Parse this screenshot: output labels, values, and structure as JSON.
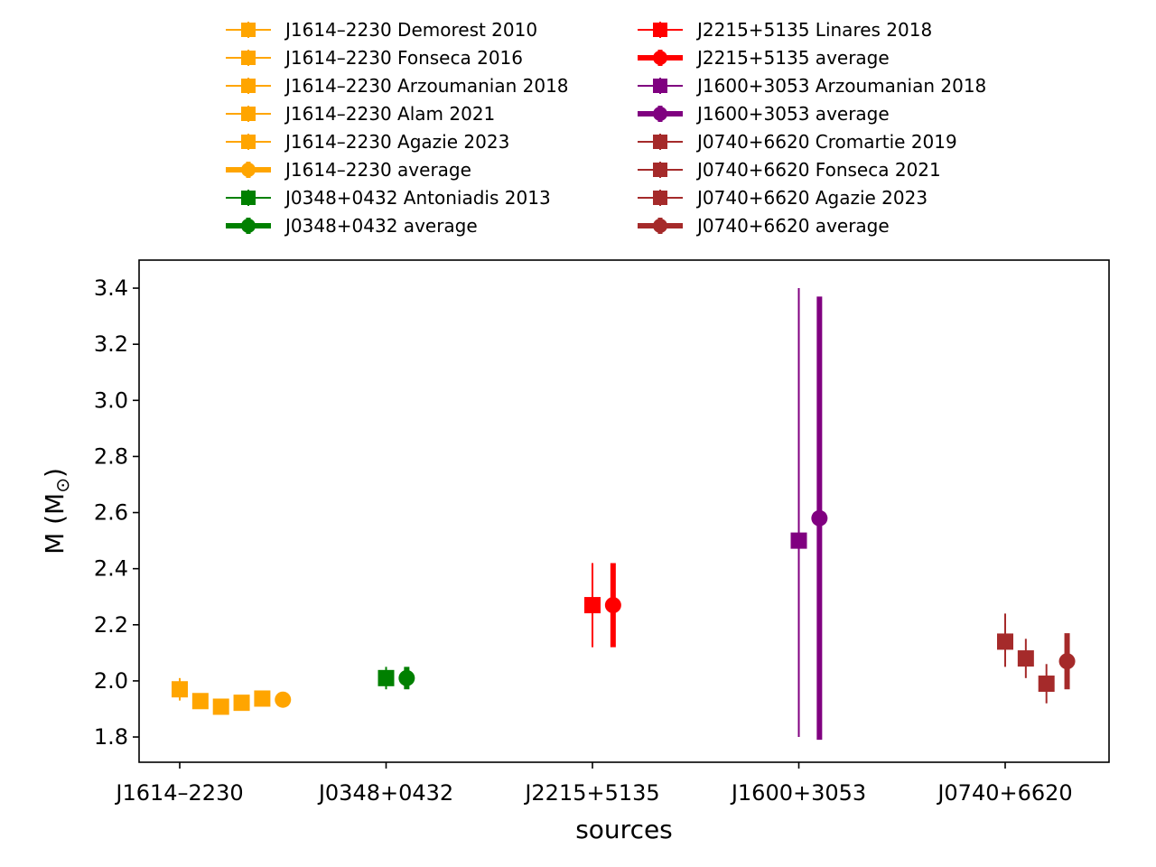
{
  "chart_data": {
    "type": "scatter",
    "xlabel": "sources",
    "ylabel_main": "M (M",
    "ylabel_sub": "⊙",
    "ylabel_close": ")",
    "ylim": [
      1.71,
      3.5
    ],
    "yticks": [
      "1.8",
      "2.0",
      "2.2",
      "2.4",
      "2.6",
      "2.8",
      "3.0",
      "3.2",
      "3.4"
    ],
    "categories": [
      "J1614–2230",
      "J0348+0432",
      "J2215+5135",
      "J1600+3053",
      "J0740+6620"
    ],
    "colors": {
      "J1614–2230": "#ffa500",
      "J0348+0432": "#008000",
      "J2215+5135": "#ff0000",
      "J1600+3053": "#800080",
      "J0740+6620": "#a52a2a"
    },
    "series": [
      {
        "name": "J1614–2230 Demorest 2010",
        "source": "J1614–2230",
        "x": 0.0,
        "y": 1.97,
        "err": 0.04,
        "marker": "square",
        "avg": false
      },
      {
        "name": "J1614–2230 Fonseca 2016",
        "source": "J1614–2230",
        "x": 0.1,
        "y": 1.928,
        "err": 0.017,
        "marker": "square",
        "avg": false
      },
      {
        "name": "J1614–2230 Arzoumanian 2018",
        "source": "J1614–2230",
        "x": 0.2,
        "y": 1.908,
        "err": 0.016,
        "marker": "square",
        "avg": false
      },
      {
        "name": "J1614–2230 Alam 2021",
        "source": "J1614–2230",
        "x": 0.3,
        "y": 1.922,
        "err": 0.015,
        "marker": "square",
        "avg": false
      },
      {
        "name": "J1614–2230 Agazie 2023",
        "source": "J1614–2230",
        "x": 0.4,
        "y": 1.937,
        "err": 0.014,
        "marker": "square",
        "avg": false
      },
      {
        "name": "J1614–2230 average",
        "source": "J1614–2230",
        "x": 0.5,
        "y": 1.933,
        "err": 0.02,
        "marker": "circle",
        "avg": true
      },
      {
        "name": "J0348+0432 Antoniadis 2013",
        "source": "J0348+0432",
        "x": 1.0,
        "y": 2.01,
        "err": 0.04,
        "marker": "square",
        "avg": false
      },
      {
        "name": "J0348+0432 average",
        "source": "J0348+0432",
        "x": 1.1,
        "y": 2.01,
        "err": 0.04,
        "marker": "circle",
        "avg": true
      },
      {
        "name": "J2215+5135 Linares 2018",
        "source": "J2215+5135",
        "x": 2.0,
        "y": 2.27,
        "err": 0.15,
        "marker": "square",
        "avg": false
      },
      {
        "name": "J2215+5135 average",
        "source": "J2215+5135",
        "x": 2.1,
        "y": 2.27,
        "err": 0.15,
        "marker": "circle",
        "avg": true
      },
      {
        "name": "J1600+3053 Arzoumanian 2018",
        "source": "J1600+3053",
        "x": 3.0,
        "y": 2.5,
        "err": 0.8,
        "err_low": 0.7,
        "err_high": 0.9,
        "marker": "square",
        "avg": false
      },
      {
        "name": "J1600+3053 average",
        "source": "J1600+3053",
        "x": 3.1,
        "y": 2.58,
        "err_low": 0.79,
        "err_high": 0.79,
        "marker": "circle",
        "avg": true
      },
      {
        "name": "J0740+6620 Cromartie 2019",
        "source": "J0740+6620",
        "x": 4.0,
        "y": 2.14,
        "err_low": 0.09,
        "err_high": 0.1,
        "marker": "square",
        "avg": false
      },
      {
        "name": "J0740+6620 Fonseca 2021",
        "source": "J0740+6620",
        "x": 4.1,
        "y": 2.08,
        "err": 0.07,
        "marker": "square",
        "avg": false
      },
      {
        "name": "J0740+6620 Agazie 2023",
        "source": "J0740+6620",
        "x": 4.2,
        "y": 1.99,
        "err": 0.07,
        "marker": "square",
        "avg": false
      },
      {
        "name": "J0740+6620 average",
        "source": "J0740+6620",
        "x": 4.3,
        "y": 2.07,
        "err": 0.1,
        "marker": "circle",
        "avg": true
      }
    ],
    "legend": {
      "placement": "top-outside",
      "columns": [
        [
          "J1614–2230 Demorest 2010",
          "J1614–2230 Fonseca 2016",
          "J1614–2230 Arzoumanian 2018",
          "J1614–2230 Alam 2021",
          "J1614–2230 Agazie 2023",
          "J1614–2230 average",
          "J0348+0432 Antoniadis 2013",
          "J0348+0432 average"
        ],
        [
          "J2215+5135 Linares 2018",
          "J2215+5135 average",
          "J1600+3053 Arzoumanian 2018",
          "J1600+3053 average",
          "J0740+6620 Cromartie 2019",
          "J0740+6620 Fonseca 2021",
          "J0740+6620 Agazie 2023",
          "J0740+6620 average"
        ]
      ]
    },
    "grid": false
  }
}
